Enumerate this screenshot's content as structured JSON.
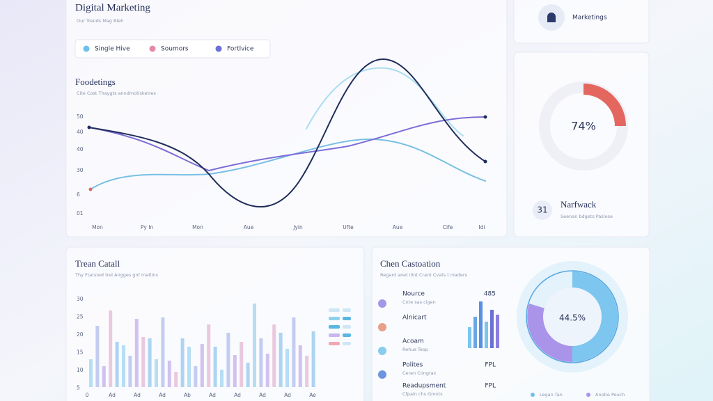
{
  "main": {
    "title": "Digital Marketing",
    "subtitle": "Our Trends Mag Bleh",
    "legend": [
      "Single Hive",
      "Soumors",
      "Fortlvice"
    ],
    "chart_title": "Foodetings",
    "chart_subtitle": "Cite Cost Thaygts anndmotlsketres",
    "y_labels": [
      "50",
      "40",
      "40",
      "30",
      "6",
      "01"
    ],
    "x_labels": [
      "Mon",
      "Py In",
      "Mon",
      "Aue",
      "Jyin",
      "Ufte",
      "Aue",
      "Cife",
      "Idi"
    ]
  },
  "profile": {
    "label": "Marketings"
  },
  "gauge": {
    "value_text": "74%",
    "count": "31",
    "name": "Narfwack",
    "caption": "Seenan bdgets Paslese"
  },
  "trend": {
    "title": "Trean Catall",
    "subtitle": "Thy Ftarsted trel Angges gnf matlins",
    "y_labels": [
      "30",
      "25",
      "20",
      "15",
      "10",
      "5"
    ],
    "x_labels": [
      "0",
      "Ad",
      "Ad",
      "Ad",
      "Ab",
      "Ad",
      "Ad",
      "Ad",
      "Ad",
      "Ae"
    ]
  },
  "channels": {
    "title": "Chen Castoation",
    "subtitle": "Regard anet ilint Crant Cvats t niaders",
    "items": [
      {
        "label": "Nource",
        "sub": "Cnte sas cigen",
        "value": "485"
      },
      {
        "label": "Alnicart"
      },
      {
        "label": "Acoam",
        "sub": "Rehus Teop"
      },
      {
        "label": "Polites",
        "sub": "Ceren Congrax",
        "value": "FPL"
      },
      {
        "label": "Readupsment",
        "sub": "Cfpain chs Gronts",
        "value": "FPL"
      }
    ],
    "donut_text": "44.5%",
    "legend": [
      "Legan Tan",
      "Anotie Pouch"
    ]
  }
}
